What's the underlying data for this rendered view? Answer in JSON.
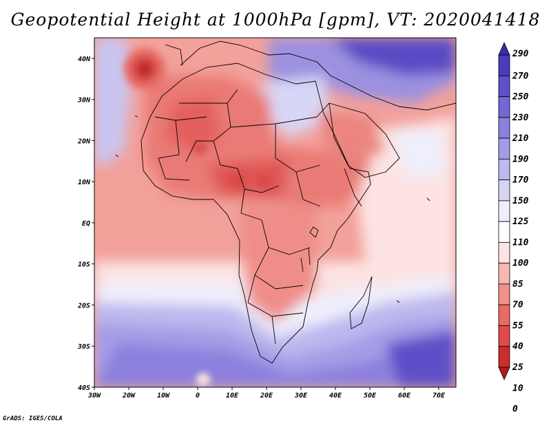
{
  "title": "Geopotential Height at 1000hPa [gpm], VT: 2020041418",
  "credit": "GrADS: IGES/COLA",
  "map": {
    "lon_range": [
      -30,
      75
    ],
    "lat_range": [
      -40,
      45
    ],
    "x_ticks": [
      "30W",
      "20W",
      "10W",
      "0",
      "10E",
      "20E",
      "30E",
      "40E",
      "50E",
      "60E",
      "70E"
    ],
    "y_ticks": [
      "40N",
      "30N",
      "20N",
      "10N",
      "EQ",
      "10S",
      "20S",
      "30S",
      "40S"
    ]
  },
  "colorbar": {
    "levels": [
      "290",
      "270",
      "250",
      "230",
      "210",
      "190",
      "170",
      "150",
      "125",
      "110",
      "100",
      "85",
      "70",
      "55",
      "40",
      "25",
      "10",
      "0"
    ],
    "colors": [
      "#3a2ca8",
      "#4b3cbb",
      "#5d50c8",
      "#7466d4",
      "#8b80dd",
      "#a49ce6",
      "#bdb8ee",
      "#d6d4f6",
      "#eeeefc",
      "#ffffff",
      "#fde3e2",
      "#f7b7b3",
      "#f1918b",
      "#e96b66",
      "#de4a48",
      "#cc2d2d",
      "#b31a1a"
    ]
  }
}
